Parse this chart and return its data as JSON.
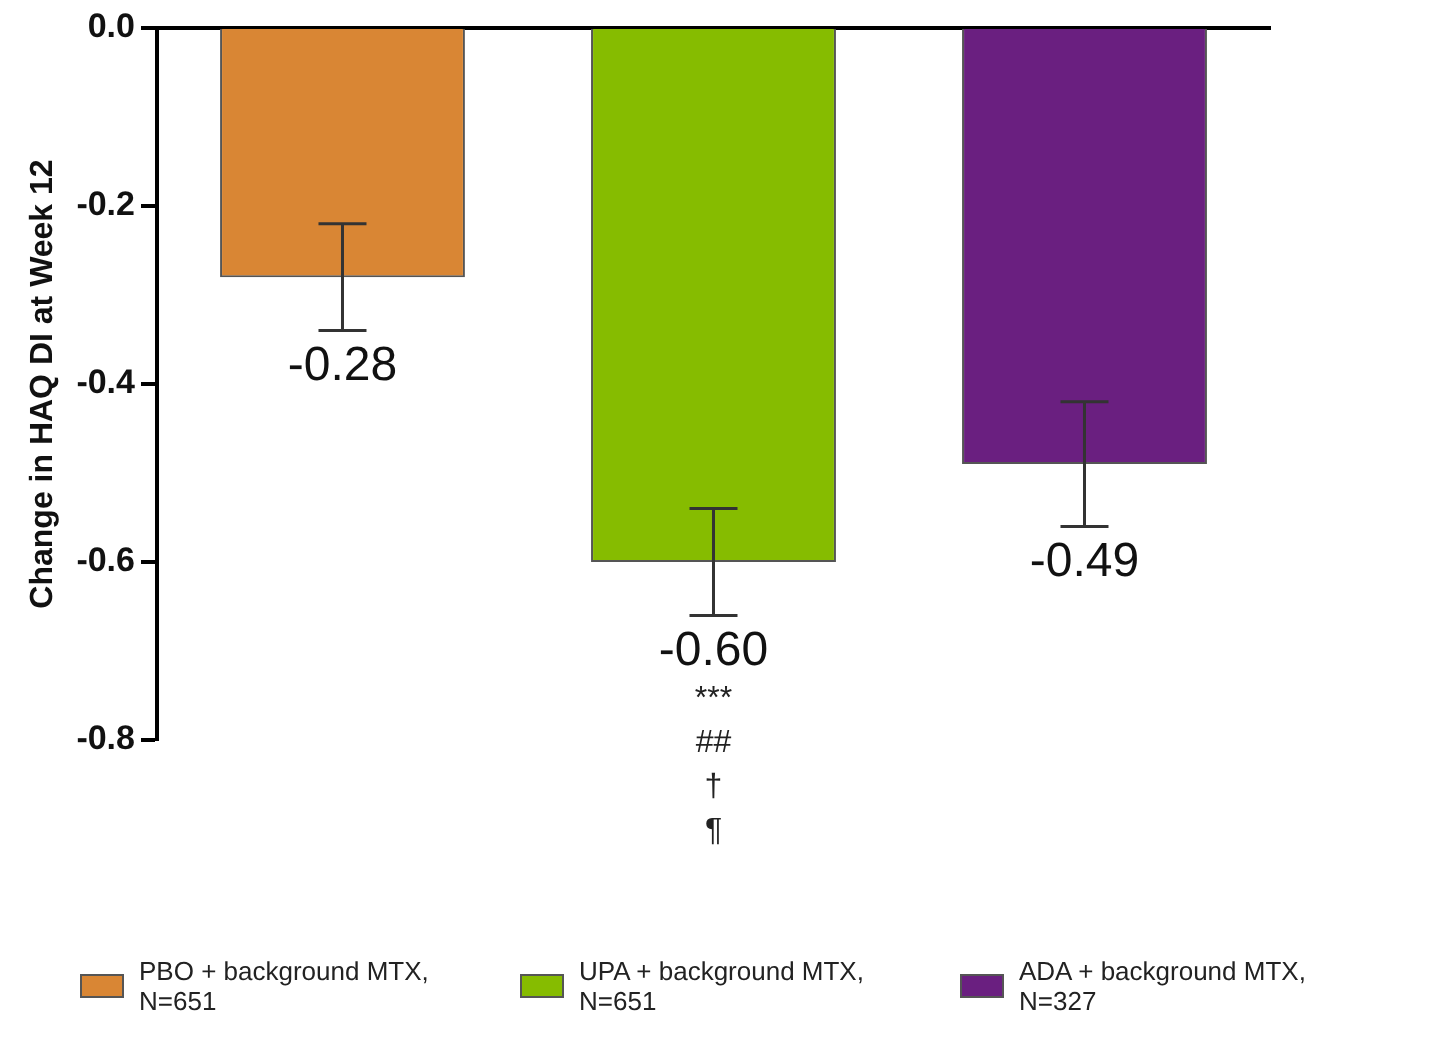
{
  "chart_data": {
    "type": "bar",
    "ylabel": "Change in HAQ DI at Week 12",
    "categories": [
      null,
      null,
      null
    ],
    "series": [
      {
        "name": "PBO + background MTX, N=651",
        "color": "#d98634",
        "values": [
          -0.28,
          null,
          null
        ],
        "errors": [
          0.06,
          null,
          null
        ],
        "value_labels": [
          "-0.28",
          null,
          null
        ]
      },
      {
        "name": "UPA + background MTX, N=651",
        "color": "#86bc00",
        "values": [
          null,
          -0.6,
          null
        ],
        "errors": [
          null,
          0.06,
          null
        ],
        "value_labels": [
          null,
          "-0.60",
          null
        ]
      },
      {
        "name": "ADA + background MTX, N=327",
        "color": "#6a1f80",
        "values": [
          null,
          null,
          -0.49
        ],
        "errors": [
          null,
          null,
          0.07
        ],
        "value_labels": [
          null,
          null,
          "-0.49"
        ]
      }
    ],
    "ylim": [
      -0.8,
      0
    ],
    "yticks": [
      {
        "value": 0,
        "label": "0.0"
      },
      {
        "value": -0.2,
        "label": "-0.2"
      },
      {
        "value": -0.4,
        "label": "-0.4"
      },
      {
        "value": -0.6,
        "label": "-0.6"
      },
      {
        "value": -0.8,
        "label": "-0.8"
      }
    ],
    "annotations": [
      "***",
      "##",
      "†",
      "¶"
    ],
    "grid": false,
    "legend": "bottom",
    "tick_labels": "y"
  }
}
